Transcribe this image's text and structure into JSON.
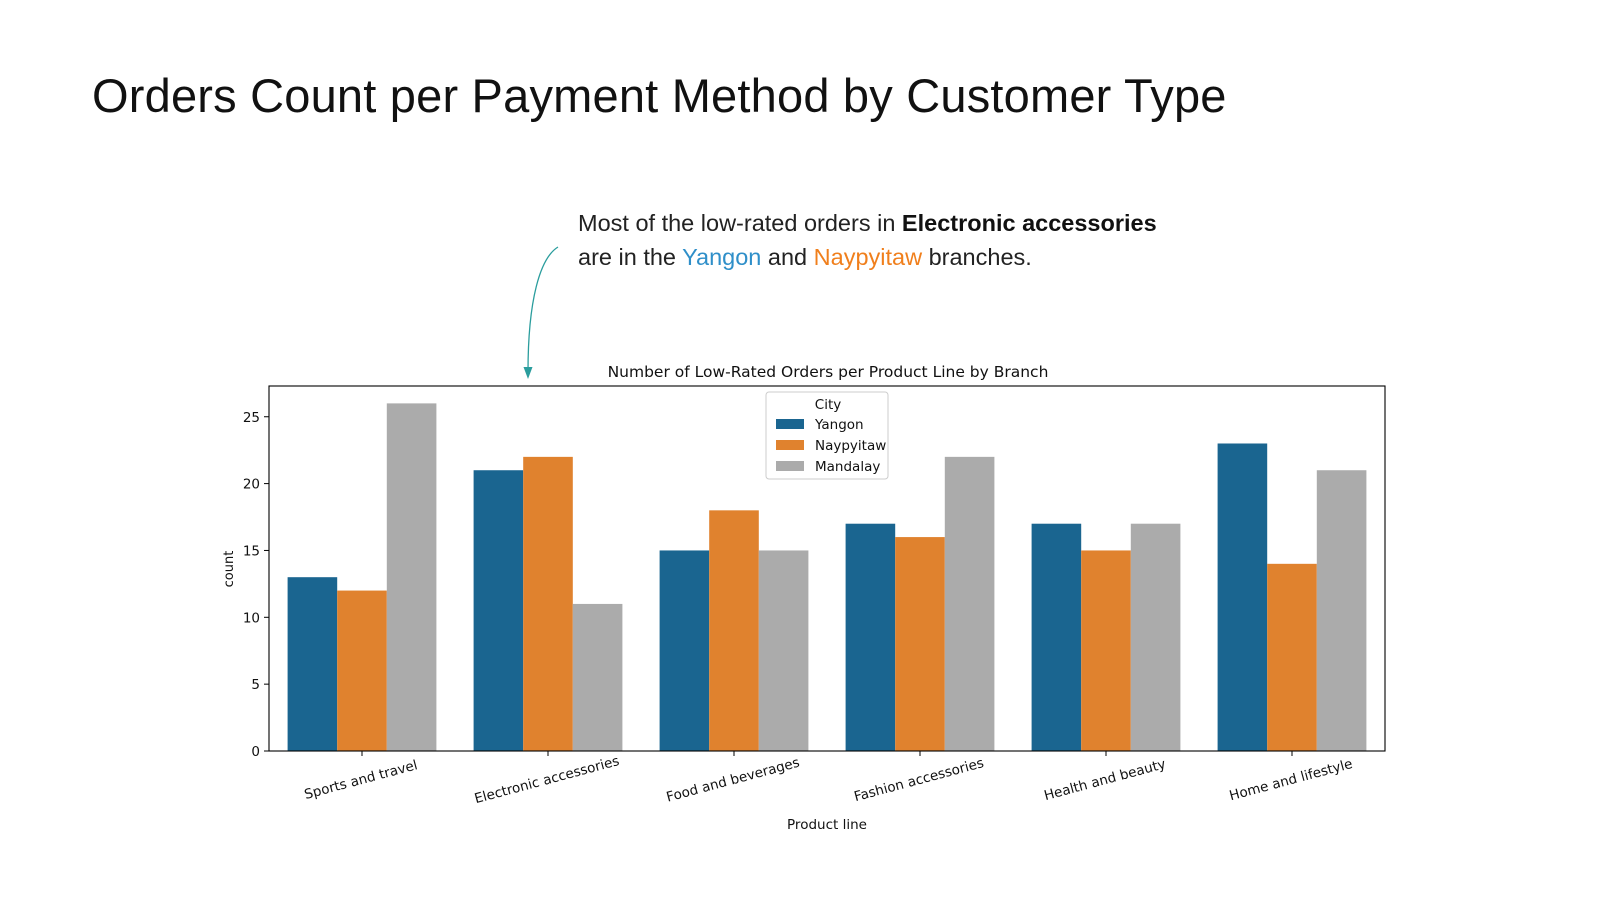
{
  "slide": {
    "title": "Orders Count per Payment Method by Customer Type"
  },
  "annotation": {
    "line1_prefix": "Most of the low-rated orders in ",
    "line1_emph": "Electronic accessories",
    "line2_prefix": "are in the ",
    "line2_city1": "Yangon",
    "line2_mid": " and ",
    "line2_city2": "Naypyitaw",
    "line2_suffix": " branches.",
    "colors": {
      "yangon": "#2f8fc9",
      "naypyitaw": "#f07f1c",
      "arrow": "#2a9d9d"
    }
  },
  "chart_data": {
    "type": "bar",
    "title": "Number of Low-Rated Orders per Product Line by Branch",
    "xlabel": "Product line",
    "ylabel": "count",
    "ylim": [
      0,
      27.3
    ],
    "yticks": [
      0,
      5,
      10,
      15,
      20,
      25
    ],
    "categories": [
      "Sports and travel",
      "Electronic accessories",
      "Food and beverages",
      "Fashion accessories",
      "Health and beauty",
      "Home and lifestyle"
    ],
    "legend": {
      "title": "City",
      "placement": "top-center"
    },
    "series": [
      {
        "name": "Yangon",
        "color": "#1a6590",
        "values": [
          13,
          21,
          15,
          17,
          17,
          23
        ]
      },
      {
        "name": "Naypyitaw",
        "color": "#e0822e",
        "values": [
          12,
          22,
          18,
          16,
          15,
          14
        ]
      },
      {
        "name": "Mandalay",
        "color": "#ababab",
        "values": [
          26,
          11,
          15,
          22,
          17,
          21
        ]
      }
    ],
    "grid": false
  }
}
